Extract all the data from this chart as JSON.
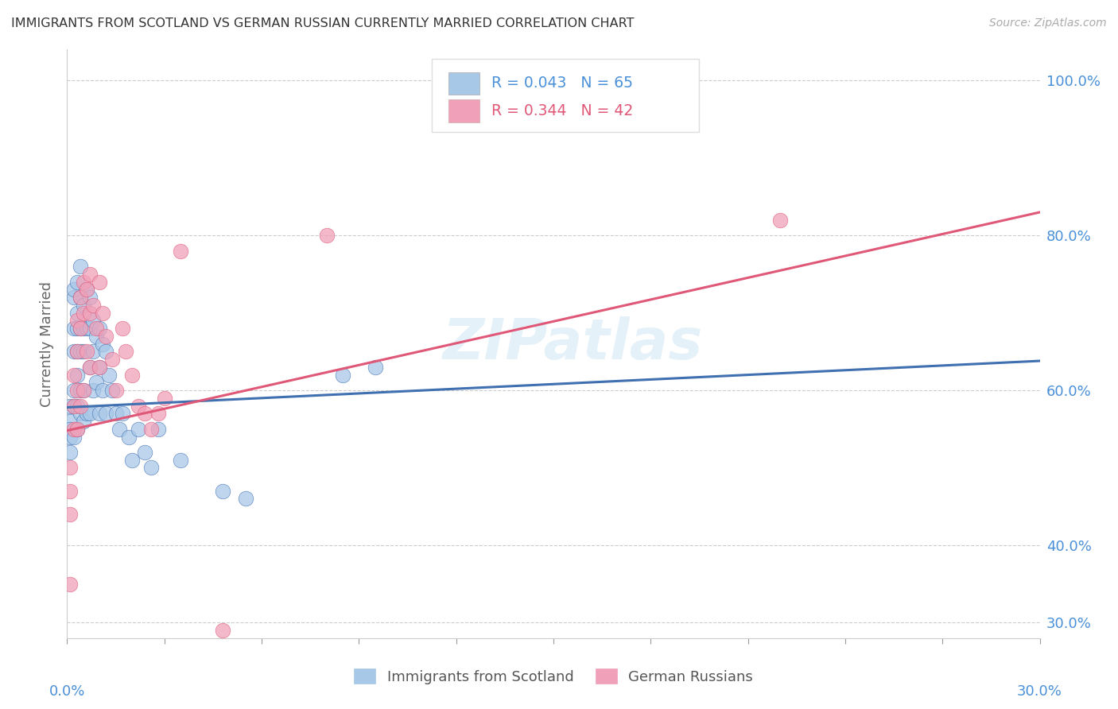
{
  "title": "IMMIGRANTS FROM SCOTLAND VS GERMAN RUSSIAN CURRENTLY MARRIED CORRELATION CHART",
  "source": "Source: ZipAtlas.com",
  "ylabel": "Currently Married",
  "watermark": "ZIPatlas",
  "xmin": 0.0,
  "xmax": 0.3,
  "ymin": 0.28,
  "ymax": 1.04,
  "blue_color": "#a8c8e8",
  "pink_color": "#f0a0b8",
  "blue_line_color": "#4070b0",
  "pink_line_color": "#e05878",
  "axis_label_color": "#4a90d9",
  "grid_color": "#cccccc",
  "blue_trend_x": [
    0.0,
    0.3
  ],
  "blue_trend_y": [
    0.578,
    0.638
  ],
  "pink_trend_x": [
    0.0,
    0.3
  ],
  "pink_trend_y": [
    0.548,
    0.83
  ],
  "scotland_x": [
    0.001,
    0.001,
    0.001,
    0.001,
    0.001,
    0.002,
    0.002,
    0.002,
    0.002,
    0.002,
    0.002,
    0.002,
    0.003,
    0.003,
    0.003,
    0.003,
    0.003,
    0.003,
    0.003,
    0.004,
    0.004,
    0.004,
    0.004,
    0.004,
    0.004,
    0.005,
    0.005,
    0.005,
    0.005,
    0.005,
    0.006,
    0.006,
    0.006,
    0.007,
    0.007,
    0.007,
    0.007,
    0.008,
    0.008,
    0.008,
    0.009,
    0.009,
    0.01,
    0.01,
    0.01,
    0.011,
    0.011,
    0.012,
    0.012,
    0.013,
    0.014,
    0.015,
    0.016,
    0.017,
    0.019,
    0.02,
    0.022,
    0.024,
    0.026,
    0.028,
    0.035,
    0.048,
    0.055,
    0.085,
    0.095
  ],
  "scotland_y": [
    0.58,
    0.56,
    0.55,
    0.54,
    0.52,
    0.72,
    0.73,
    0.68,
    0.65,
    0.6,
    0.58,
    0.54,
    0.74,
    0.7,
    0.68,
    0.65,
    0.62,
    0.58,
    0.55,
    0.76,
    0.72,
    0.68,
    0.65,
    0.6,
    0.57,
    0.71,
    0.68,
    0.65,
    0.6,
    0.56,
    0.73,
    0.68,
    0.57,
    0.72,
    0.68,
    0.63,
    0.57,
    0.69,
    0.65,
    0.6,
    0.67,
    0.61,
    0.68,
    0.63,
    0.57,
    0.66,
    0.6,
    0.65,
    0.57,
    0.62,
    0.6,
    0.57,
    0.55,
    0.57,
    0.54,
    0.51,
    0.55,
    0.52,
    0.5,
    0.55,
    0.51,
    0.47,
    0.46,
    0.62,
    0.63
  ],
  "german_x": [
    0.001,
    0.001,
    0.001,
    0.001,
    0.002,
    0.002,
    0.002,
    0.003,
    0.003,
    0.003,
    0.003,
    0.004,
    0.004,
    0.004,
    0.005,
    0.005,
    0.005,
    0.006,
    0.006,
    0.007,
    0.007,
    0.007,
    0.008,
    0.009,
    0.01,
    0.01,
    0.011,
    0.012,
    0.014,
    0.015,
    0.017,
    0.018,
    0.02,
    0.022,
    0.024,
    0.026,
    0.028,
    0.03,
    0.035,
    0.08,
    0.22,
    0.048
  ],
  "german_y": [
    0.5,
    0.47,
    0.44,
    0.35,
    0.62,
    0.58,
    0.55,
    0.69,
    0.65,
    0.6,
    0.55,
    0.72,
    0.68,
    0.58,
    0.74,
    0.7,
    0.6,
    0.73,
    0.65,
    0.75,
    0.7,
    0.63,
    0.71,
    0.68,
    0.74,
    0.63,
    0.7,
    0.67,
    0.64,
    0.6,
    0.68,
    0.65,
    0.62,
    0.58,
    0.57,
    0.55,
    0.57,
    0.59,
    0.78,
    0.8,
    0.82,
    0.29
  ]
}
